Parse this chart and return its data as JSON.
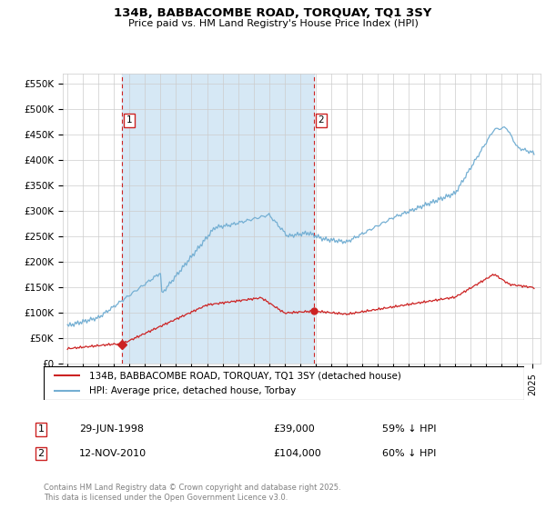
{
  "title": "134B, BABBACOMBE ROAD, TORQUAY, TQ1 3SY",
  "subtitle": "Price paid vs. HM Land Registry's House Price Index (HPI)",
  "ylabel_ticks": [
    "£0",
    "£50K",
    "£100K",
    "£150K",
    "£200K",
    "£250K",
    "£300K",
    "£350K",
    "£400K",
    "£450K",
    "£500K",
    "£550K"
  ],
  "ytick_values": [
    0,
    50000,
    100000,
    150000,
    200000,
    250000,
    300000,
    350000,
    400000,
    450000,
    500000,
    550000
  ],
  "ylim": [
    0,
    570000
  ],
  "hpi_color": "#74afd3",
  "hpi_fill_color": "#d6e8f5",
  "price_color": "#cc2222",
  "marker1_date_x": 1998.49,
  "marker1_price": 39000,
  "marker1_label": "1",
  "marker1_date_str": "29-JUN-1998",
  "marker1_price_str": "£39,000",
  "marker1_pct": "59% ↓ HPI",
  "marker2_date_x": 2010.87,
  "marker2_price": 104000,
  "marker2_label": "2",
  "marker2_date_str": "12-NOV-2010",
  "marker2_price_str": "£104,000",
  "marker2_pct": "60% ↓ HPI",
  "legend_line1": "134B, BABBACOMBE ROAD, TORQUAY, TQ1 3SY (detached house)",
  "legend_line2": "HPI: Average price, detached house, Torbay",
  "footer": "Contains HM Land Registry data © Crown copyright and database right 2025.\nThis data is licensed under the Open Government Licence v3.0.",
  "xlim_start": 1994.7,
  "xlim_end": 2025.5,
  "xtick_years": [
    1995,
    1996,
    1997,
    1998,
    1999,
    2000,
    2001,
    2002,
    2003,
    2004,
    2005,
    2006,
    2007,
    2008,
    2009,
    2010,
    2011,
    2012,
    2013,
    2014,
    2015,
    2016,
    2017,
    2018,
    2019,
    2020,
    2021,
    2022,
    2023,
    2024,
    2025
  ]
}
